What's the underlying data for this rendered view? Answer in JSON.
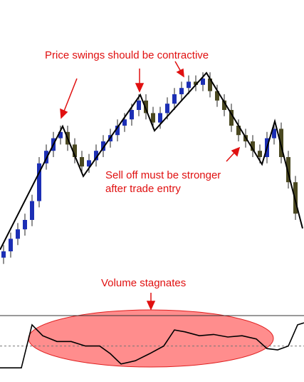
{
  "chart_data": {
    "type": "candlestick",
    "annotations": [
      "Price swings should be contractive",
      "Sell off must be stronger",
      "after trade entry",
      "Volume stagnates"
    ],
    "up_color": "#1c2fb5",
    "down_color": "#4a4820",
    "xlim": [
      -0.5,
      42.2
    ],
    "ylim": [
      0,
      100
    ],
    "open": [
      18,
      20,
      24,
      27,
      30,
      36,
      48,
      52,
      56,
      58,
      54,
      50,
      47,
      49,
      52,
      55,
      57,
      60,
      62,
      65,
      68,
      64,
      61,
      64,
      67,
      70,
      72,
      74,
      73,
      75,
      71,
      68,
      65,
      60,
      57,
      55,
      52,
      50,
      56,
      59,
      50,
      42
    ],
    "high": [
      22,
      26,
      29,
      32,
      38,
      50,
      54,
      58,
      60,
      60,
      56,
      52,
      51,
      54,
      57,
      59,
      62,
      64,
      67,
      70,
      70,
      66,
      66,
      69,
      72,
      74,
      76,
      76,
      77,
      77,
      73,
      70,
      67,
      62,
      59,
      57,
      54,
      58,
      61,
      61,
      52,
      44
    ],
    "low": [
      16,
      18,
      22,
      25,
      28,
      34,
      46,
      50,
      54,
      52,
      48,
      45,
      45,
      47,
      50,
      53,
      55,
      58,
      60,
      63,
      62,
      59,
      59,
      62,
      65,
      68,
      70,
      71,
      71,
      69,
      66,
      63,
      58,
      55,
      53,
      50,
      48,
      48,
      54,
      48,
      40,
      30
    ],
    "close": [
      20,
      24,
      27,
      30,
      36,
      48,
      52,
      56,
      58,
      54,
      50,
      47,
      49,
      52,
      55,
      57,
      60,
      62,
      65,
      68,
      64,
      61,
      64,
      67,
      70,
      72,
      74,
      73,
      75,
      71,
      68,
      65,
      60,
      57,
      55,
      52,
      50,
      56,
      59,
      50,
      42,
      32
    ],
    "swing_line": {
      "x": [
        -0.5,
        8.3,
        11.2,
        19.2,
        21.2,
        28.5,
        36.3,
        38.1,
        42
      ],
      "values": [
        20.5,
        59.8,
        43.9,
        69.8,
        58.4,
        76.8,
        47.7,
        61.4,
        27.3
      ]
    },
    "volume": {
      "x": [
        -0.5,
        2.5,
        4,
        5.5,
        7.5,
        9.5,
        11.5,
        13.5,
        15,
        16.5,
        18.5,
        20.5,
        22.5,
        24,
        25.5,
        27.5,
        29.5,
        31.5,
        33.5,
        35.5,
        37,
        38.5,
        40,
        41.3,
        42.2
      ],
      "values": [
        22,
        22,
        89,
        72,
        63,
        63,
        56,
        56,
        44,
        28,
        33,
        44,
        56,
        81,
        78,
        72,
        74,
        70,
        72,
        67,
        52,
        50,
        56,
        89,
        92
      ],
      "ylim": [
        0,
        100
      ],
      "reference_level": 56
    }
  }
}
